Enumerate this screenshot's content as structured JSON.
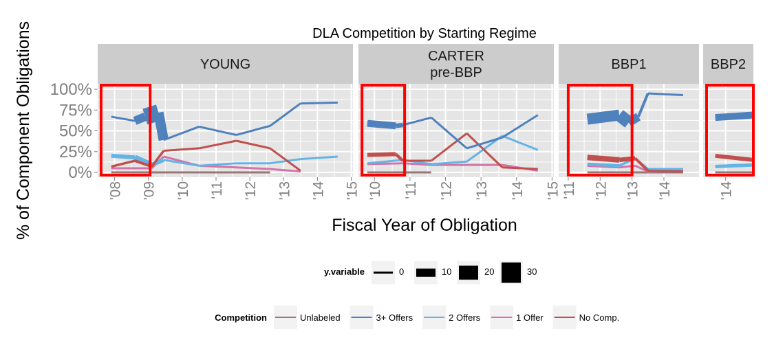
{
  "chart_data": {
    "type": "line",
    "title": "DLA Competition by Starting Regime",
    "xlabel": "Fiscal Year of Obligation",
    "ylabel": "% of Component Obligations",
    "y_ticks": [
      "0%",
      "25%",
      "50%",
      "75%",
      "100%"
    ],
    "ylim": [
      0,
      1
    ],
    "grid": true,
    "panels": [
      {
        "name": "YOUNG",
        "label_lines": [
          "YOUNG"
        ],
        "xlim": [
          2007.5,
          2015.05
        ],
        "ticks": [
          2008,
          2009,
          2010,
          2011,
          2012,
          2013,
          2014,
          2015
        ],
        "tick_labels": [
          "'08",
          "'09",
          "'10",
          "'11",
          "'12",
          "'13",
          "'14",
          "'15"
        ],
        "highlight": [
          2007.6,
          2009.05
        ],
        "series": [
          {
            "name": "3+ Offers",
            "points": [
              [
                2007.9,
                0.67,
                3
              ],
              [
                2008.6,
                0.62,
                3
              ],
              [
                2008.9,
                0.67,
                22
              ],
              [
                2009.3,
                0.72,
                26
              ],
              [
                2009.45,
                0.39,
                3
              ],
              [
                2010.5,
                0.55,
                3
              ],
              [
                2011.6,
                0.45,
                3
              ],
              [
                2012.6,
                0.56,
                3
              ],
              [
                2013.5,
                0.83,
                3
              ],
              [
                2014.6,
                0.84,
                3
              ]
            ]
          },
          {
            "name": "2 Offers",
            "points": [
              [
                2007.9,
                0.2,
                5
              ],
              [
                2008.6,
                0.18,
                7
              ],
              [
                2009.1,
                0.09,
                9
              ],
              [
                2009.45,
                0.15,
                3
              ],
              [
                2010.5,
                0.08,
                3
              ],
              [
                2011.6,
                0.11,
                3
              ],
              [
                2012.6,
                0.11,
                3
              ],
              [
                2013.5,
                0.16,
                3
              ],
              [
                2014.6,
                0.19,
                3
              ]
            ]
          },
          {
            "name": "1 Offer",
            "points": [
              [
                2007.9,
                0.05,
                3
              ],
              [
                2008.6,
                0.05,
                3
              ],
              [
                2009.1,
                0.05,
                3
              ],
              [
                2009.45,
                0.19,
                3
              ],
              [
                2010.5,
                0.08,
                3
              ],
              [
                2011.6,
                0.06,
                3
              ],
              [
                2012.6,
                0.04,
                3
              ],
              [
                2013.5,
                0.01,
                3
              ]
            ]
          },
          {
            "name": "No Comp.",
            "points": [
              [
                2007.9,
                0.07,
                3
              ],
              [
                2008.6,
                0.14,
                4
              ],
              [
                2009.1,
                0.07,
                4
              ],
              [
                2009.45,
                0.26,
                3
              ],
              [
                2010.5,
                0.29,
                3
              ],
              [
                2011.6,
                0.38,
                3
              ],
              [
                2012.6,
                0.29,
                3
              ],
              [
                2013.5,
                0.02,
                3
              ]
            ]
          },
          {
            "name": "Unlabeled",
            "points": [
              [
                2007.9,
                0.0,
                3
              ],
              [
                2009.1,
                0.0,
                3
              ],
              [
                2010.5,
                0.0,
                3
              ],
              [
                2011.6,
                0.0,
                3
              ],
              [
                2012.6,
                0.0,
                3
              ]
            ]
          }
        ]
      },
      {
        "name": "CARTER pre-BBP",
        "label_lines": [
          "CARTER",
          "pre-BBP"
        ],
        "xlim": [
          2009.55,
          2015.05
        ],
        "ticks": [
          2010,
          2011,
          2012,
          2013,
          2014,
          2015
        ],
        "tick_labels": [
          "'10",
          "'11",
          "'12",
          "'13",
          "'14",
          "'15"
        ],
        "highlight": [
          2009.65,
          2010.85
        ],
        "series": [
          {
            "name": "3+ Offers",
            "points": [
              [
                2009.8,
                0.59,
                10
              ],
              [
                2010.6,
                0.56,
                10
              ],
              [
                2010.8,
                0.57,
                3
              ],
              [
                2011.6,
                0.66,
                3
              ],
              [
                2012.6,
                0.29,
                3
              ],
              [
                2013.6,
                0.42,
                3
              ],
              [
                2014.6,
                0.69,
                3
              ]
            ]
          },
          {
            "name": "2 Offers",
            "points": [
              [
                2009.8,
                0.11,
                3
              ],
              [
                2010.8,
                0.15,
                3
              ],
              [
                2011.6,
                0.1,
                3
              ],
              [
                2012.6,
                0.13,
                3
              ],
              [
                2013.6,
                0.44,
                3
              ],
              [
                2014.6,
                0.27,
                3
              ]
            ]
          },
          {
            "name": "1 Offer",
            "points": [
              [
                2009.8,
                0.1,
                3
              ],
              [
                2010.8,
                0.11,
                3
              ],
              [
                2011.6,
                0.09,
                3
              ],
              [
                2012.6,
                0.09,
                3
              ],
              [
                2013.6,
                0.09,
                3
              ],
              [
                2014.6,
                0.02,
                3
              ]
            ]
          },
          {
            "name": "No Comp.",
            "points": [
              [
                2009.8,
                0.21,
                6
              ],
              [
                2010.6,
                0.22,
                6
              ],
              [
                2010.8,
                0.14,
                3
              ],
              [
                2011.6,
                0.14,
                3
              ],
              [
                2012.6,
                0.47,
                3
              ],
              [
                2013.6,
                0.06,
                3
              ],
              [
                2014.6,
                0.04,
                3
              ]
            ]
          },
          {
            "name": "Unlabeled",
            "points": [
              [
                2009.8,
                0.0,
                3
              ],
              [
                2011.6,
                0.0,
                3
              ]
            ]
          }
        ]
      },
      {
        "name": "BBP1",
        "label_lines": [
          "BBP1"
        ],
        "xlim": [
          2010.7,
          2015.1
        ],
        "ticks": [
          2011,
          2012,
          2013,
          2014
        ],
        "tick_labels": [
          "'11",
          "'12",
          "'13",
          "'14"
        ],
        "highlight": [
          2011.0,
          2013.0
        ],
        "series": [
          {
            "name": "3+ Offers",
            "points": [
              [
                2011.6,
                0.64,
                15
              ],
              [
                2012.6,
                0.69,
                17
              ],
              [
                2012.9,
                0.6,
                20
              ],
              [
                2013.2,
                0.67,
                5
              ],
              [
                2013.5,
                0.95,
                3
              ],
              [
                2014.6,
                0.93,
                3
              ]
            ]
          },
          {
            "name": "2 Offers",
            "points": [
              [
                2011.6,
                0.1,
                5
              ],
              [
                2012.6,
                0.08,
                4
              ],
              [
                2013.1,
                0.17,
                3
              ],
              [
                2013.5,
                0.04,
                3
              ],
              [
                2014.6,
                0.04,
                3
              ]
            ]
          },
          {
            "name": "1 Offer",
            "points": [
              [
                2011.6,
                0.08,
                3
              ],
              [
                2012.6,
                0.06,
                3
              ],
              [
                2013.1,
                0.08,
                3
              ],
              [
                2013.5,
                0.01,
                3
              ],
              [
                2014.6,
                0.02,
                3
              ]
            ]
          },
          {
            "name": "No Comp.",
            "points": [
              [
                2011.6,
                0.18,
                8
              ],
              [
                2012.6,
                0.15,
                8
              ],
              [
                2013.1,
                0.17,
                5
              ],
              [
                2013.5,
                0.02,
                3
              ],
              [
                2014.6,
                0.01,
                3
              ]
            ]
          },
          {
            "name": "Unlabeled",
            "points": [
              [
                2011.6,
                0.0,
                3
              ],
              [
                2013.1,
                0.0,
                3
              ],
              [
                2014.6,
                0.0,
                3
              ]
            ]
          }
        ]
      },
      {
        "name": "BBP2",
        "label_lines": [
          "BBP2"
        ],
        "xlim": [
          2013.35,
          2014.8
        ],
        "ticks": [
          2014
        ],
        "tick_labels": [
          "'14"
        ],
        "highlight": [
          2013.45,
          2014.8
        ],
        "series": [
          {
            "name": "3+ Offers",
            "points": [
              [
                2013.7,
                0.66,
                10
              ],
              [
                2014.8,
                0.69,
                10
              ]
            ]
          },
          {
            "name": "2 Offers",
            "points": [
              [
                2013.7,
                0.07,
                5
              ],
              [
                2014.8,
                0.09,
                5
              ]
            ]
          },
          {
            "name": "No Comp.",
            "points": [
              [
                2013.7,
                0.2,
                6
              ],
              [
                2014.8,
                0.15,
                6
              ]
            ]
          },
          {
            "name": "Unlabeled",
            "points": [
              [
                2013.7,
                0.0,
                3
              ],
              [
                2014.8,
                0.0,
                3
              ]
            ]
          }
        ]
      }
    ],
    "legend_size": {
      "title": "y.variable",
      "values": [
        0,
        10,
        20,
        30
      ],
      "labels": [
        "0",
        "10",
        "20",
        "30"
      ],
      "placement": "bottom"
    },
    "legend_color": {
      "title": "Competition",
      "placement": "bottom",
      "entries": [
        {
          "name": "Unlabeled",
          "color": "#997777"
        },
        {
          "name": "3+ Offers",
          "color": "#4f81bd"
        },
        {
          "name": "2 Offers",
          "color": "#64b4e6"
        },
        {
          "name": "1 Offer",
          "color": "#d373a8"
        },
        {
          "name": "No Comp.",
          "color": "#c0504d"
        }
      ]
    },
    "colors": {
      "panel_background": "#e5e5e5",
      "strip_background": "#cccccc",
      "grid": "#ffffff",
      "highlight_box": "#ff0000"
    }
  }
}
